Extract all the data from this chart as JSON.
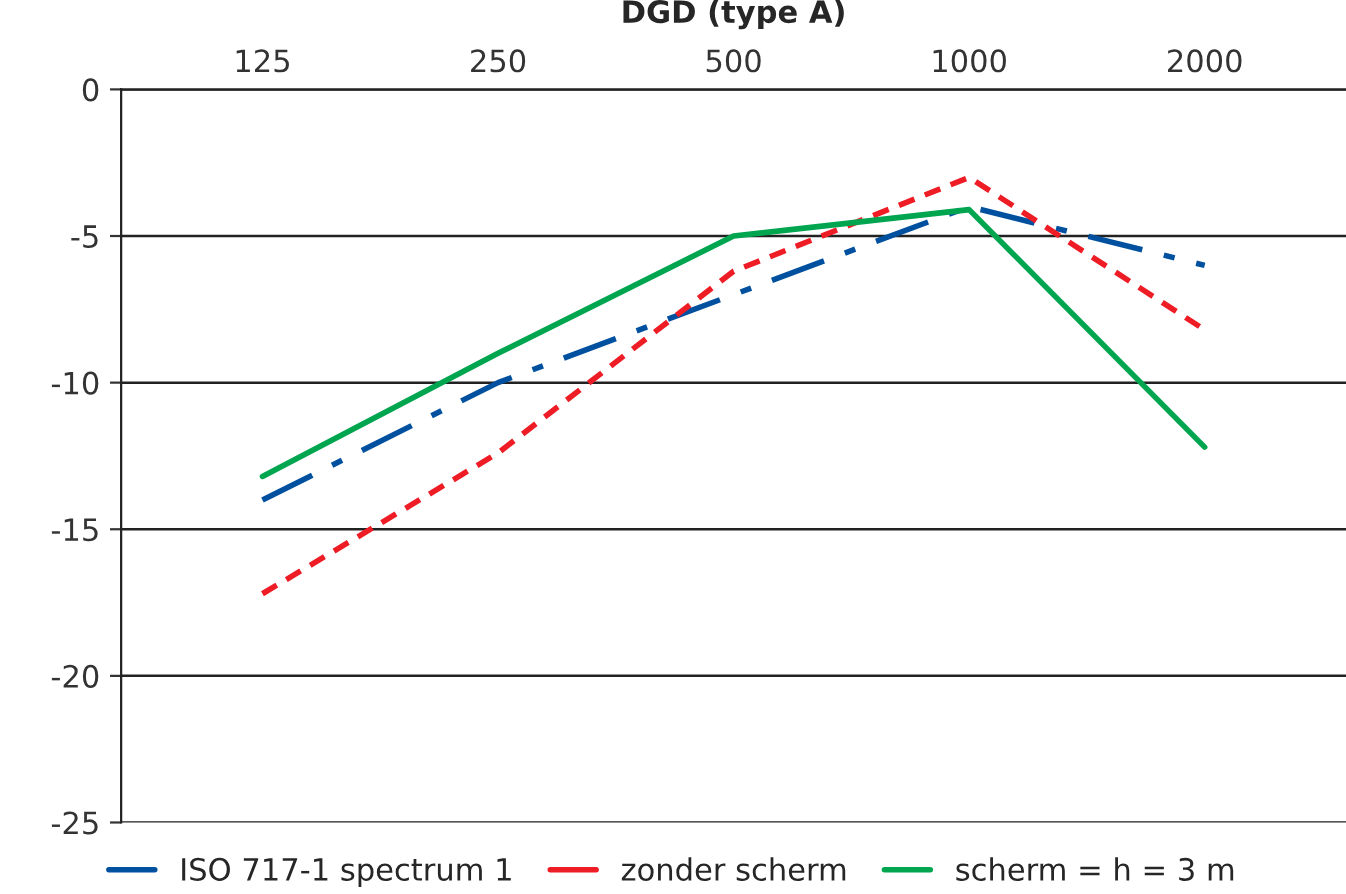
{
  "chart_data": {
    "type": "line",
    "title": "DGD (type A)",
    "categories": [
      "125",
      "250",
      "500",
      "1000",
      "2000"
    ],
    "series": [
      {
        "name": "ISO 717-1 spectrum 1",
        "color": "#0050a0",
        "line_style": "dashdot",
        "values": [
          -14,
          -10,
          -7,
          -4,
          -6
        ]
      },
      {
        "name": "zonder scherm",
        "color": "#ee1c25",
        "line_style": "dashed",
        "values": [
          -17.2,
          -12.4,
          -6.2,
          -3,
          -8.2
        ]
      },
      {
        "name": "scherm = h = 3 m",
        "color": "#00a550",
        "line_style": "solid",
        "values": [
          -13.2,
          -9,
          -5,
          -4.1,
          -12.2
        ]
      }
    ],
    "ylim": [
      -25,
      0
    ],
    "yticks": [
      0,
      -5,
      -10,
      -15,
      -20,
      -25
    ],
    "grid": "y",
    "legend": "bottom"
  }
}
